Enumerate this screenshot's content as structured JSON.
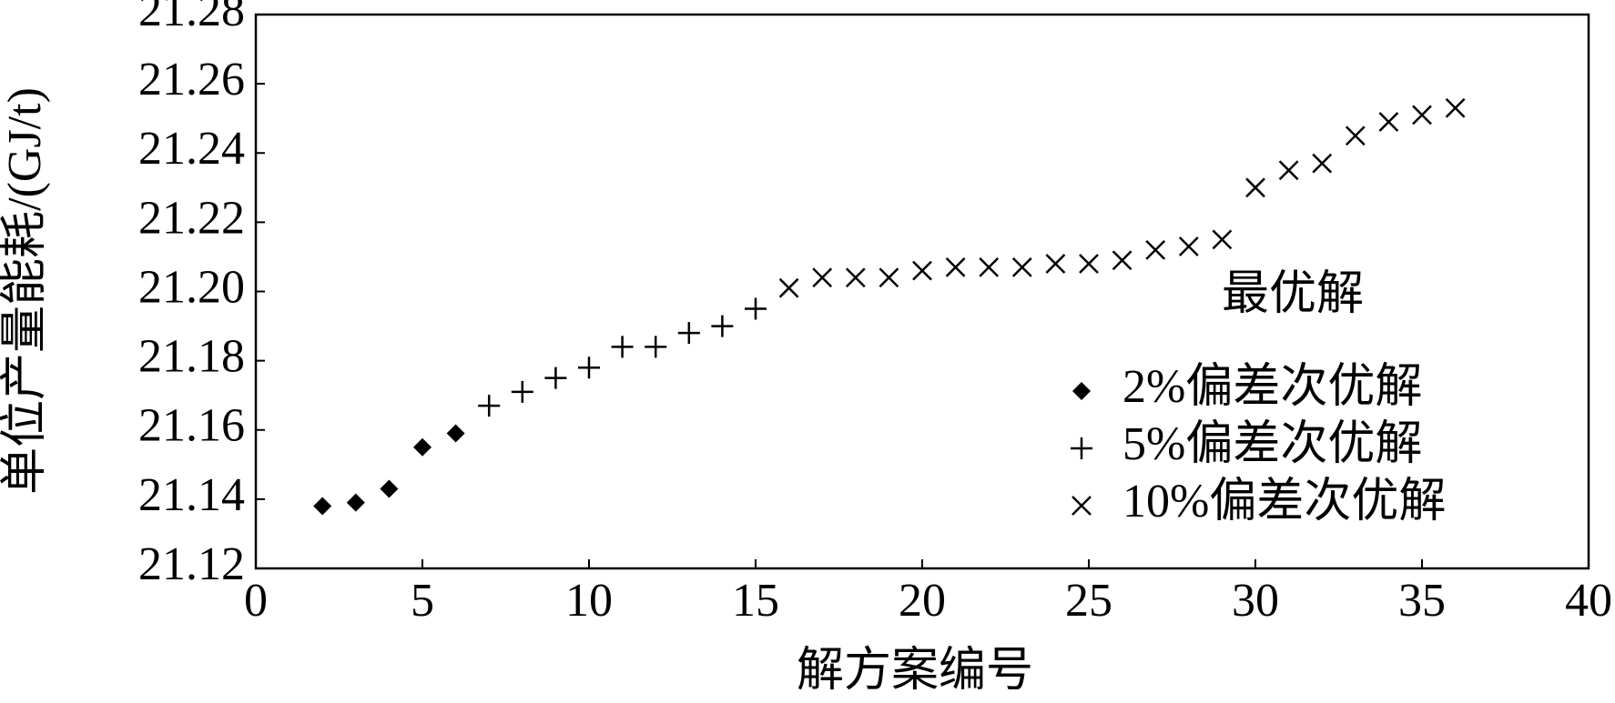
{
  "chart_data": {
    "type": "scatter",
    "xlabel": "解方案编号",
    "ylabel": "单位产量能耗/(GJ/t)",
    "xlim": [
      0,
      40
    ],
    "xticks": [
      0,
      5,
      10,
      15,
      20,
      25,
      30,
      35,
      40
    ],
    "ylim": [
      21.12,
      21.28
    ],
    "yticks": [
      21.12,
      21.14,
      21.16,
      21.18,
      {
        "value": 21.2,
        "label": "21.20"
      },
      21.22,
      21.24,
      21.26,
      21.28
    ],
    "legend_title": "最优解",
    "legend_position": "right",
    "series": [
      {
        "name": "2%偏差次优解",
        "color": "#000000",
        "marker": "diamond",
        "x": [
          2,
          3,
          4,
          5,
          6
        ],
        "values": [
          21.138,
          21.139,
          21.143,
          21.155,
          21.159
        ]
      },
      {
        "name": "5%偏差次优解",
        "color": "#000000",
        "marker": "plus",
        "x": [
          7,
          8,
          9,
          10,
          11,
          12,
          13,
          14,
          15
        ],
        "values": [
          21.167,
          21.171,
          21.175,
          21.178,
          21.184,
          21.184,
          21.188,
          21.19,
          21.195
        ]
      },
      {
        "name": "10%偏差次优解",
        "color": "#000000",
        "marker": "cross",
        "x": [
          16,
          17,
          18,
          19,
          20,
          21,
          22,
          23,
          24,
          25,
          26,
          27,
          28,
          29,
          30,
          31,
          32,
          33,
          34,
          35,
          36
        ],
        "values": [
          21.201,
          21.204,
          21.204,
          21.204,
          21.206,
          21.207,
          21.207,
          21.207,
          21.208,
          21.208,
          21.209,
          21.212,
          21.213,
          21.215,
          21.23,
          21.235,
          21.237,
          21.245,
          21.249,
          21.251,
          21.253
        ]
      }
    ]
  }
}
